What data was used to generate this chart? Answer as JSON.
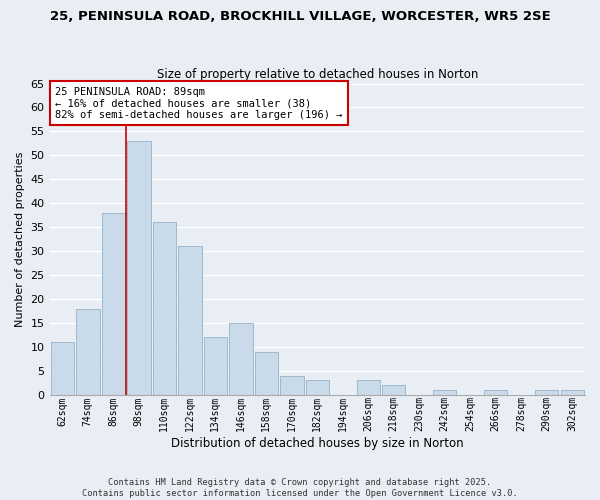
{
  "title1": "25, PENINSULA ROAD, BROCKHILL VILLAGE, WORCESTER, WR5 2SE",
  "title2": "Size of property relative to detached houses in Norton",
  "xlabel": "Distribution of detached houses by size in Norton",
  "ylabel": "Number of detached properties",
  "bar_labels": [
    "62sqm",
    "74sqm",
    "86sqm",
    "98sqm",
    "110sqm",
    "122sqm",
    "134sqm",
    "146sqm",
    "158sqm",
    "170sqm",
    "182sqm",
    "194sqm",
    "206sqm",
    "218sqm",
    "230sqm",
    "242sqm",
    "254sqm",
    "266sqm",
    "278sqm",
    "290sqm",
    "302sqm"
  ],
  "bar_values": [
    11,
    18,
    38,
    53,
    36,
    31,
    12,
    15,
    9,
    4,
    3,
    0,
    3,
    2,
    0,
    1,
    0,
    1,
    0,
    1,
    1
  ],
  "bar_color": "#c9daea",
  "bar_edge_color": "#a0b8cc",
  "ylim": [
    0,
    65
  ],
  "yticks": [
    0,
    5,
    10,
    15,
    20,
    25,
    30,
    35,
    40,
    45,
    50,
    55,
    60,
    65
  ],
  "vline_color": "#cc0000",
  "annotation_title": "25 PENINSULA ROAD: 89sqm",
  "annotation_line1": "← 16% of detached houses are smaller (38)",
  "annotation_line2": "82% of semi-detached houses are larger (196) →",
  "footnote1": "Contains HM Land Registry data © Crown copyright and database right 2025.",
  "footnote2": "Contains public sector information licensed under the Open Government Licence v3.0.",
  "bg_color": "#e8eef4",
  "grid_color": "#ffffff",
  "ann_box_color": "#ffffff",
  "ann_edge_color": "#cc0000"
}
